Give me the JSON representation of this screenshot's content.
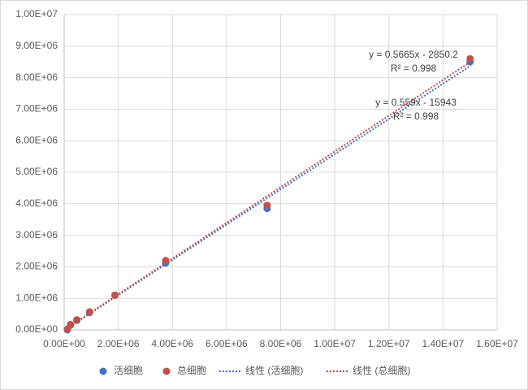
{
  "chart_data": {
    "type": "scatter",
    "xlim": [
      0,
      16000000
    ],
    "xticks": [
      {
        "value": 0,
        "label": "0.00E+00"
      },
      {
        "value": 2000000,
        "label": "2.00E+06"
      },
      {
        "value": 4000000,
        "label": "4.00E+06"
      },
      {
        "value": 6000000,
        "label": "6.00E+06"
      },
      {
        "value": 8000000,
        "label": "8.00E+06"
      },
      {
        "value": 10000000,
        "label": "1.00E+07"
      },
      {
        "value": 12000000,
        "label": "1.20E+07"
      },
      {
        "value": 14000000,
        "label": "1.40E+07"
      },
      {
        "value": 16000000,
        "label": "1.60E+07"
      }
    ],
    "ylim": [
      0,
      10000000
    ],
    "yticks": [
      {
        "value": 0,
        "label": "0.00E+00"
      },
      {
        "value": 1000000,
        "label": "1.00E+06"
      },
      {
        "value": 2000000,
        "label": "2.00E+06"
      },
      {
        "value": 3000000,
        "label": "3.00E+06"
      },
      {
        "value": 4000000,
        "label": "4.00E+06"
      },
      {
        "value": 5000000,
        "label": "5.00E+06"
      },
      {
        "value": 6000000,
        "label": "6.00E+06"
      },
      {
        "value": 7000000,
        "label": "7.00E+06"
      },
      {
        "value": 8000000,
        "label": "8.00E+06"
      },
      {
        "value": 9000000,
        "label": "9.00E+06"
      },
      {
        "value": 10000000,
        "label": "1.00E+07"
      }
    ],
    "grid": true,
    "legend": "bottom",
    "series": [
      {
        "name": "活细胞",
        "color": "#4472c4",
        "x": [
          117000,
          234000,
          469000,
          937500,
          1875000,
          3750000,
          7500000,
          15000000
        ],
        "values": [
          0,
          150000,
          300000,
          550000,
          1100000,
          2120000,
          3850000,
          8500000
        ],
        "trendline": {
          "name": "线性 (活细胞)",
          "slope": 0.559,
          "intercept": -15943,
          "equation": "y = 0.559x - 15943",
          "r_squared": "R² = 0.998"
        }
      },
      {
        "name": "总细胞",
        "color": "#c0504d",
        "x": [
          117000,
          234000,
          469000,
          937500,
          1875000,
          3750000,
          7500000,
          15000000
        ],
        "values": [
          20000,
          170000,
          320000,
          570000,
          1100000,
          2200000,
          3950000,
          8600000
        ],
        "trendline": {
          "name": "线性 (总细胞)",
          "slope": 0.5665,
          "intercept": -2850.2,
          "equation": "y = 0.5665x - 2850.2",
          "r_squared": "R² = 0.998"
        }
      }
    ]
  }
}
